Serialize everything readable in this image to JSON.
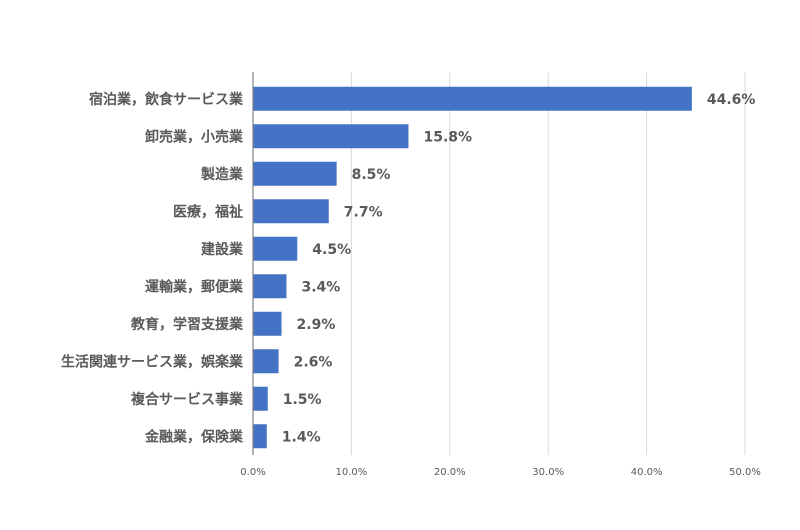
{
  "chart_data": {
    "type": "bar",
    "orientation": "horizontal",
    "title": "",
    "xlabel": "",
    "ylabel": "",
    "categories": [
      "宿泊業，飲食サービス業",
      "卸売業，小売業",
      "製造業",
      "医療，福祉",
      "建設業",
      "運輸業，郵便業",
      "教育，学習支援業",
      "生活関連サービス業，娯楽業",
      "複合サービス事業",
      "金融業，保険業"
    ],
    "values": [
      44.6,
      15.8,
      8.5,
      7.7,
      4.5,
      3.4,
      2.9,
      2.6,
      1.5,
      1.4
    ],
    "value_labels": [
      "44.6%",
      "15.8%",
      "8.5%",
      "7.7%",
      "4.5%",
      "3.4%",
      "2.9%",
      "2.6%",
      "1.5%",
      "1.4%"
    ],
    "xlim": [
      0,
      50
    ],
    "ticks": [
      0,
      10,
      20,
      30,
      40,
      50
    ],
    "tick_labels": [
      "0.0%",
      "10.0%",
      "20.0%",
      "30.0%",
      "40.0%",
      "50.0%"
    ],
    "grid": "vertical",
    "legend": "none",
    "bar_color": "#4472c4"
  }
}
